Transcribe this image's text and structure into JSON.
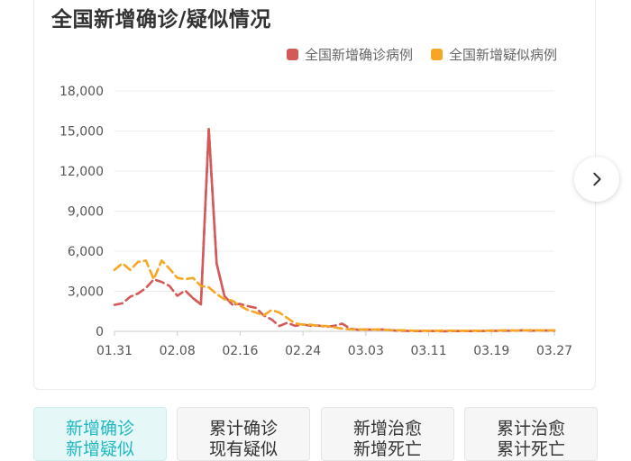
{
  "header": {
    "title": "全国新增确诊/疑似情况"
  },
  "legend": [
    {
      "label": "全国新增确诊病例",
      "color": "#d45a5a"
    },
    {
      "label": "全国新增疑似病例",
      "color": "#f5a623"
    }
  ],
  "nav": {
    "next_icon": "chevron-right-icon"
  },
  "tabs": [
    {
      "line1": "新增确诊",
      "line2": "新增疑似",
      "active": true
    },
    {
      "line1": "累计确诊",
      "line2": "现有疑似",
      "active": false
    },
    {
      "line1": "新增治愈",
      "line2": "新增死亡",
      "active": false
    },
    {
      "line1": "累计治愈",
      "line2": "累计死亡",
      "active": false
    }
  ],
  "chart_data": {
    "type": "line",
    "title": "全国新增确诊/疑似情况",
    "xlabel": "",
    "ylabel": "",
    "ylim": [
      0,
      18000
    ],
    "yticks": [
      "0",
      "3,000",
      "6,000",
      "9,000",
      "12,000",
      "15,000",
      "18,000"
    ],
    "xticks": [
      "01.31",
      "02.08",
      "02.16",
      "02.24",
      "03.03",
      "03.11",
      "03.19",
      "03.27"
    ],
    "grid": true,
    "legend_position": "top-right",
    "x": [
      "01.31",
      "02.01",
      "02.02",
      "02.03",
      "02.04",
      "02.05",
      "02.06",
      "02.07",
      "02.08",
      "02.09",
      "02.10",
      "02.11",
      "02.12",
      "02.13",
      "02.14",
      "02.15",
      "02.16",
      "02.17",
      "02.18",
      "02.19",
      "02.20",
      "02.21",
      "02.22",
      "02.23",
      "02.24",
      "02.25",
      "02.26",
      "02.27",
      "02.28",
      "02.29",
      "03.01",
      "03.02",
      "03.03",
      "03.04",
      "03.05",
      "03.06",
      "03.07",
      "03.08",
      "03.09",
      "03.10",
      "03.11",
      "03.12",
      "03.13",
      "03.14",
      "03.15",
      "03.16",
      "03.17",
      "03.18",
      "03.19",
      "03.20",
      "03.21",
      "03.22",
      "03.23",
      "03.24",
      "03.25",
      "03.26",
      "03.27"
    ],
    "series": [
      {
        "name": "全国新增确诊病例",
        "color": "#d45a5a",
        "style": "dashed-solid",
        "values": [
          1980,
          2100,
          2590,
          2830,
          3240,
          3890,
          3700,
          3400,
          2660,
          3060,
          2480,
          2020,
          15150,
          5090,
          2640,
          2010,
          2050,
          1890,
          1750,
          1190,
          890,
          400,
          650,
          410,
          510,
          410,
          430,
          330,
          420,
          570,
          200,
          120,
          140,
          120,
          140,
          100,
          50,
          40,
          20,
          20,
          30,
          20,
          10,
          20,
          20,
          20,
          20,
          30,
          40,
          40,
          50,
          50,
          80,
          50,
          70,
          60,
          50
        ]
      },
      {
        "name": "全国新增疑似病例",
        "color": "#f5a623",
        "style": "dashed",
        "values": [
          4600,
          5100,
          4600,
          5200,
          5300,
          3900,
          5300,
          4700,
          4000,
          3900,
          4000,
          3400,
          3300,
          2800,
          2400,
          2300,
          1900,
          1600,
          1400,
          1200,
          1600,
          1400,
          1000,
          600,
          500,
          500,
          400,
          400,
          300,
          200,
          150,
          150,
          130,
          140,
          130,
          100,
          80,
          80,
          50,
          50,
          40,
          40,
          60,
          50,
          40,
          40,
          50,
          50,
          60,
          70,
          80,
          60,
          70,
          90,
          80,
          70,
          80
        ]
      }
    ]
  }
}
